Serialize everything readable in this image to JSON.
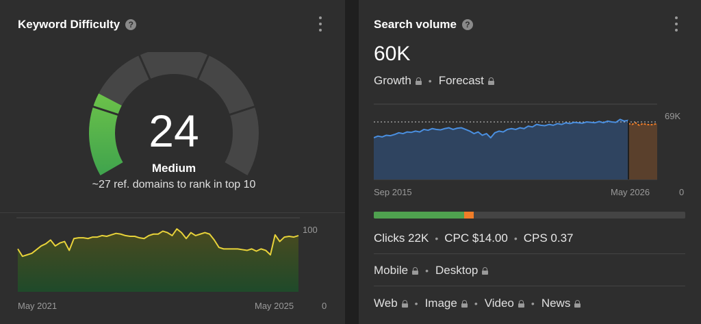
{
  "keyword_difficulty": {
    "title": "Keyword Difficulty",
    "score": "24",
    "level": "Medium",
    "description": "~27 ref. domains to rank in top 10",
    "gauge_value": 24,
    "gauge_max": 100,
    "colors": {
      "gauge_fill": "#4caf50",
      "gauge_track": "#464646",
      "line": "#e8d33a",
      "area_top": "#4b4a1f",
      "area_bottom": "#1f4a2a"
    },
    "chart_data": {
      "type": "area",
      "x_start_label": "May 2021",
      "x_end_label": "May 2025",
      "y_max_label": "100",
      "y_min_label": "0",
      "ylim": [
        0,
        100
      ],
      "values": [
        58,
        48,
        50,
        52,
        57,
        62,
        65,
        70,
        62,
        66,
        68,
        56,
        72,
        73,
        73,
        72,
        74,
        74,
        76,
        75,
        77,
        79,
        78,
        76,
        75,
        75,
        73,
        72,
        76,
        78,
        78,
        82,
        80,
        76,
        85,
        80,
        72,
        80,
        76,
        78,
        80,
        78,
        70,
        60,
        58,
        58,
        58,
        58,
        57,
        56,
        58,
        55,
        58,
        56,
        50,
        77,
        68,
        74,
        75,
        74,
        76
      ]
    }
  },
  "search_volume": {
    "title": "Search volume",
    "value": "60K",
    "links_1": [
      "Growth",
      "Forecast"
    ],
    "metrics": {
      "clicks": "Clicks 22K",
      "cpc": "CPC $14.00",
      "cps": "CPS 0.37"
    },
    "devices": [
      "Mobile",
      "Desktop"
    ],
    "types": [
      "Web",
      "Image",
      "Video",
      "News"
    ],
    "clicks_bar": {
      "organic_pct": 29,
      "paid_pct": 3,
      "colors": {
        "organic": "#4fa14f",
        "paid": "#f07d28",
        "rest": "#444444"
      }
    },
    "colors": {
      "line": "#4a8fe0",
      "area": "#2f4460",
      "forecast_line": "#f07d28",
      "forecast_area": "#5a402c",
      "ref_line": "#d0d0d0"
    },
    "chart_data": {
      "type": "area",
      "x_start_label": "Sep 2015",
      "x_end_label": "May 2026",
      "y_max_label": "69K",
      "y_min_label": "0",
      "ylim": [
        0,
        69000
      ],
      "ref_value": 69000,
      "values": [
        50000,
        52000,
        51000,
        53000,
        52500,
        54000,
        56000,
        55000,
        57000,
        56500,
        58000,
        57000,
        60000,
        59000,
        61000,
        60000,
        59500,
        61000,
        62000,
        60000,
        61500,
        62000,
        60000,
        58000,
        55000,
        57000,
        53000,
        55000,
        50000,
        56000,
        58000,
        57000,
        60000,
        61000,
        60000,
        62000,
        61000,
        64000,
        63000,
        66000,
        65000,
        64500,
        66000,
        65000,
        67000,
        66000,
        68000,
        67000,
        68500,
        68000,
        67500,
        69000,
        68500,
        68000,
        69500,
        68000,
        70000,
        69000,
        68500,
        72000,
        70000,
        71000
      ],
      "forecast": [
        67000,
        66000,
        68000,
        65000,
        67000,
        66000,
        65500,
        66000,
        67000
      ]
    }
  }
}
